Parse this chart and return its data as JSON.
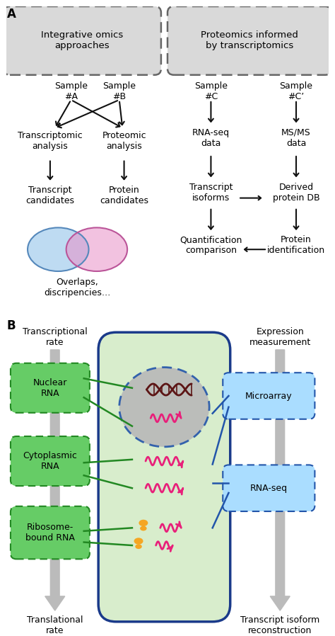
{
  "panel_A_label": "A",
  "panel_B_label": "B",
  "bg_color": "#ffffff",
  "box1_title": "Integrative omics\napproaches",
  "box2_title": "Proteomics informed\nby transcriptomics",
  "box_bg": "#d9d9d9",
  "box_border": "#666666",
  "sample_A": "Sample\n#A",
  "sample_B": "Sample\n#B",
  "sample_C": "Sample\n#C",
  "sample_Cp": "Sample\n#C’",
  "transcriptomic": "Transcriptomic\nanalysis",
  "proteomic": "Proteomic\nanalysis",
  "transcript_cand": "Transcript\ncandidates",
  "protein_cand": "Protein\ncandidates",
  "overlaps": "Overlaps,\ndiscripencies…",
  "rna_seq_data": "RNA-seq\ndata",
  "ms_ms_data": "MS/MS\ndata",
  "transcript_isoforms": "Transcript\nisoforms",
  "derived_protein": "Derived\nprotein DB",
  "quant_comparison": "Quantification\ncomparison",
  "protein_id": "Protein\nidentification",
  "trans_rate": "Transcriptional\nrate",
  "expr_meas": "Expression\nmeasurement",
  "nuclear_rna": "Nuclear\nRNA",
  "cytoplasmic_rna": "Cytoplasmic\nRNA",
  "ribosome_rna": "Ribosome-\nbound RNA",
  "microarray": "Microarray",
  "rna_seq": "RNA-seq",
  "translational_rate": "Translational\nrate",
  "transcript_isoform_recon": "Transcript isoform\nreconstruction",
  "green_box_bg": "#66cc66",
  "green_box_border": "#228822",
  "blue_box_bg": "#aaddff",
  "blue_box_border": "#2255aa",
  "cell_fill": "#d8edcc",
  "cell_border": "#1a3a8a",
  "nucleus_fill": "#b8b8b8",
  "nucleus_border": "#2255aa",
  "arrow_gray": "#aaaaaa",
  "pink_wave": "#e8207a",
  "dark_red_dna": "#6b1a1a",
  "orange_ribosome": "#f5a623"
}
